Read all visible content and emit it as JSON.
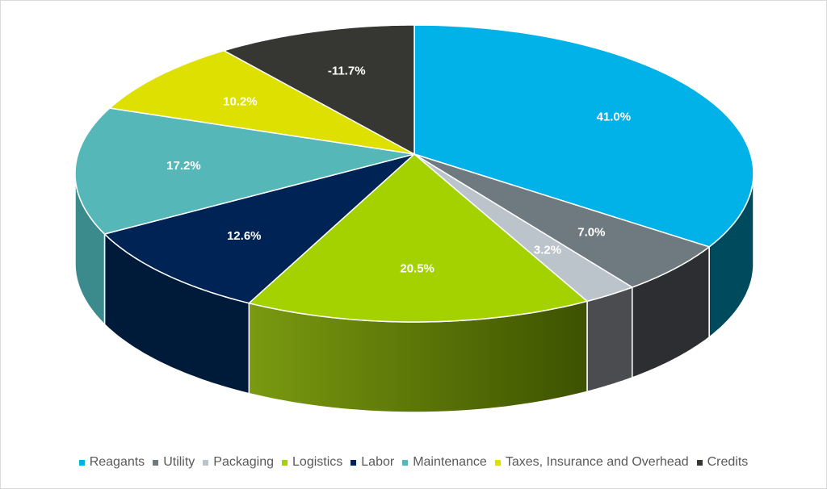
{
  "chart_data": {
    "type": "pie",
    "style": "3d",
    "title": "",
    "categories": [
      "Reagants",
      "Utility",
      "Packaging",
      "Logistics",
      "Labor",
      "Maintenance",
      "Taxes, Insurance and Overhead",
      "Credits"
    ],
    "values": [
      41.0,
      7.0,
      3.2,
      20.5,
      12.6,
      17.2,
      10.2,
      -11.7
    ],
    "labels": [
      "41.0%",
      "7.0%",
      "3.2%",
      "20.5%",
      "12.6%",
      "17.2%",
      "10.2%",
      "-11.7%"
    ],
    "colors": [
      "#00b2e8",
      "#6f7a80",
      "#bcc4cb",
      "#a4d200",
      "#002356",
      "#56b7b9",
      "#dde000",
      "#363733"
    ],
    "side_colors": [
      "#004a5e",
      "#2c2e31",
      "#4a4c50",
      "#4d6600",
      "#001a3a",
      "#3b8a8c",
      "#8f9100",
      "#222"
    ],
    "legend_position": "bottom"
  }
}
